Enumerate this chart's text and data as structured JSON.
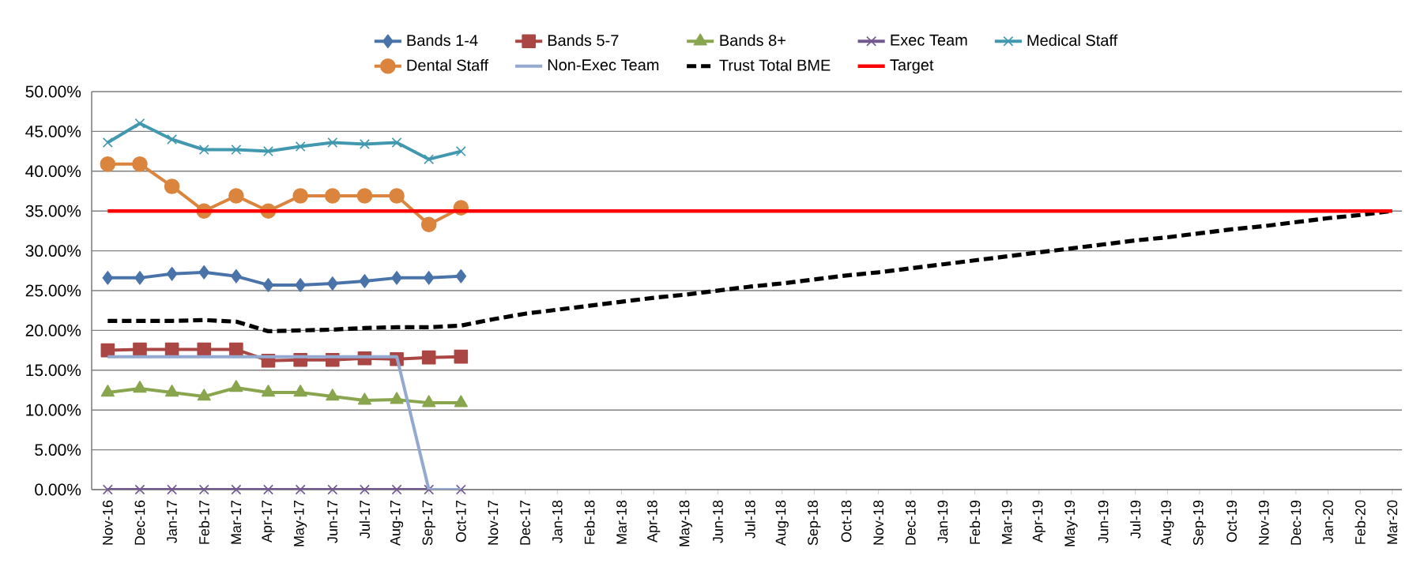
{
  "chart_data": {
    "type": "line",
    "categories": [
      "Nov-16",
      "Dec-16",
      "Jan-17",
      "Feb-17",
      "Mar-17",
      "Apr-17",
      "May-17",
      "Jun-17",
      "Jul-17",
      "Aug-17",
      "Sep-17",
      "Oct-17",
      "Nov-17",
      "Dec-17",
      "Jan-18",
      "Feb-18",
      "Mar-18",
      "Apr-18",
      "May-18",
      "Jun-18",
      "Jul-18",
      "Aug-18",
      "Sep-18",
      "Oct-18",
      "Nov-18",
      "Dec-18",
      "Jan-19",
      "Feb-19",
      "Mar-19",
      "Apr-19",
      "May-19",
      "Jun-19",
      "Jul-19",
      "Aug-19",
      "Sep-19",
      "Oct-19",
      "Nov-19",
      "Dec-19",
      "Jan-20",
      "Feb-20",
      "Mar-20"
    ],
    "ylim": [
      0,
      50
    ],
    "yticks": [
      {
        "value": 0,
        "label": "0.00%"
      },
      {
        "value": 5,
        "label": "5.00%"
      },
      {
        "value": 10,
        "label": "10.00%"
      },
      {
        "value": 15,
        "label": "15.00%"
      },
      {
        "value": 20,
        "label": "20.00%"
      },
      {
        "value": 25,
        "label": "25.00%"
      },
      {
        "value": 30,
        "label": "30.00%"
      },
      {
        "value": 35,
        "label": "35.00%"
      },
      {
        "value": 40,
        "label": "40.00%"
      },
      {
        "value": 45,
        "label": "45.00%"
      },
      {
        "value": 50,
        "label": "50.00%"
      }
    ],
    "grid": "y",
    "legend": "top",
    "series": [
      {
        "name": "Bands 1-4",
        "color": "#4a73aa",
        "marker": "diamond",
        "values": [
          26.6,
          26.6,
          27.1,
          27.3,
          26.8,
          25.7,
          25.7,
          25.9,
          26.2,
          26.6,
          26.6,
          26.8,
          null,
          null,
          null,
          null,
          null,
          null,
          null,
          null,
          null,
          null,
          null,
          null,
          null,
          null,
          null,
          null,
          null,
          null,
          null,
          null,
          null,
          null,
          null,
          null,
          null,
          null,
          null,
          null,
          null
        ]
      },
      {
        "name": "Bands 5-7",
        "color": "#aa4643",
        "marker": "square",
        "values": [
          17.5,
          17.6,
          17.6,
          17.6,
          17.6,
          16.2,
          16.3,
          16.3,
          16.5,
          16.4,
          16.6,
          16.7,
          null,
          null,
          null,
          null,
          null,
          null,
          null,
          null,
          null,
          null,
          null,
          null,
          null,
          null,
          null,
          null,
          null,
          null,
          null,
          null,
          null,
          null,
          null,
          null,
          null,
          null,
          null,
          null,
          null
        ]
      },
      {
        "name": "Bands 8+",
        "color": "#89a54e",
        "marker": "triangle",
        "values": [
          12.2,
          12.7,
          12.2,
          11.7,
          12.8,
          12.2,
          12.2,
          11.7,
          11.2,
          11.3,
          10.9,
          10.9,
          null,
          null,
          null,
          null,
          null,
          null,
          null,
          null,
          null,
          null,
          null,
          null,
          null,
          null,
          null,
          null,
          null,
          null,
          null,
          null,
          null,
          null,
          null,
          null,
          null,
          null,
          null,
          null,
          null
        ]
      },
      {
        "name": "Exec Team",
        "color": "#71588f",
        "marker": "cross",
        "values": [
          0,
          0,
          0,
          0,
          0,
          0,
          0,
          0,
          0,
          0,
          0,
          0,
          null,
          null,
          null,
          null,
          null,
          null,
          null,
          null,
          null,
          null,
          null,
          null,
          null,
          null,
          null,
          null,
          null,
          null,
          null,
          null,
          null,
          null,
          null,
          null,
          null,
          null,
          null,
          null,
          null
        ]
      },
      {
        "name": "Medical Staff",
        "color": "#4198af",
        "marker": "cross",
        "values": [
          43.6,
          46.0,
          44.0,
          42.7,
          42.7,
          42.5,
          43.1,
          43.6,
          43.4,
          43.6,
          41.5,
          42.5,
          null,
          null,
          null,
          null,
          null,
          null,
          null,
          null,
          null,
          null,
          null,
          null,
          null,
          null,
          null,
          null,
          null,
          null,
          null,
          null,
          null,
          null,
          null,
          null,
          null,
          null,
          null,
          null,
          null
        ]
      },
      {
        "name": "Dental Staff",
        "color": "#db843d",
        "marker": "circle",
        "values": [
          40.9,
          40.9,
          38.1,
          35.0,
          36.9,
          35.0,
          36.9,
          36.9,
          36.9,
          36.9,
          33.3,
          35.4,
          null,
          null,
          null,
          null,
          null,
          null,
          null,
          null,
          null,
          null,
          null,
          null,
          null,
          null,
          null,
          null,
          null,
          null,
          null,
          null,
          null,
          null,
          null,
          null,
          null,
          null,
          null,
          null,
          null
        ]
      },
      {
        "name": "Non-Exec Team",
        "color": "#93a9cf",
        "marker": "none",
        "values": [
          16.7,
          16.7,
          16.7,
          16.7,
          16.7,
          16.7,
          16.7,
          16.7,
          16.7,
          16.7,
          0,
          0,
          null,
          null,
          null,
          null,
          null,
          null,
          null,
          null,
          null,
          null,
          null,
          null,
          null,
          null,
          null,
          null,
          null,
          null,
          null,
          null,
          null,
          null,
          null,
          null,
          null,
          null,
          null,
          null,
          null
        ]
      },
      {
        "name": "Trust Total BME",
        "color": "#000000",
        "marker": "none",
        "line_style": "dashed",
        "values": [
          21.2,
          21.2,
          21.2,
          21.3,
          21.1,
          19.9,
          20.0,
          20.1,
          20.3,
          20.4,
          20.4,
          20.6,
          21.4,
          22.1,
          22.6,
          23.1,
          23.6,
          24.1,
          24.5,
          25.0,
          25.5,
          25.9,
          26.4,
          26.9,
          27.3,
          27.8,
          28.3,
          28.8,
          29.3,
          29.8,
          30.3,
          30.8,
          31.3,
          31.7,
          32.2,
          32.7,
          33.1,
          33.6,
          34.1,
          34.5,
          35.0
        ]
      },
      {
        "name": "Target",
        "color": "#ff0000",
        "marker": "none",
        "values": [
          35,
          35,
          35,
          35,
          35,
          35,
          35,
          35,
          35,
          35,
          35,
          35,
          35,
          35,
          35,
          35,
          35,
          35,
          35,
          35,
          35,
          35,
          35,
          35,
          35,
          35,
          35,
          35,
          35,
          35,
          35,
          35,
          35,
          35,
          35,
          35,
          35,
          35,
          35,
          35,
          35
        ]
      }
    ]
  }
}
